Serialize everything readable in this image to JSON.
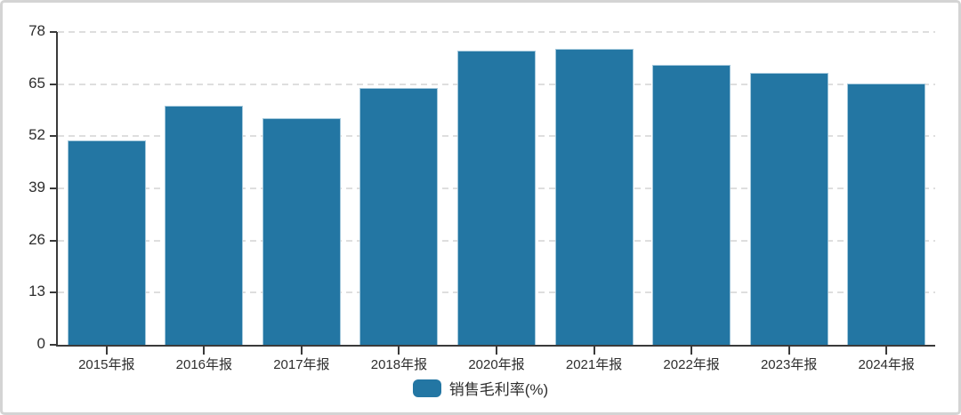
{
  "chart_data": {
    "type": "bar",
    "title": "",
    "xlabel": "",
    "ylabel": "",
    "categories": [
      "2015年报",
      "2016年报",
      "2017年报",
      "2018年报",
      "2020年报",
      "2021年报",
      "2022年报",
      "2023年报",
      "2024年报"
    ],
    "series": [
      {
        "name": "销售毛利率(%)",
        "values": [
          50.9,
          59.5,
          56.6,
          64.0,
          73.4,
          73.7,
          69.9,
          67.9,
          65.2
        ],
        "color": "#2376a3"
      }
    ],
    "ylim": [
      0,
      78
    ],
    "yticks": [
      0,
      13,
      26,
      39,
      52,
      65,
      78
    ],
    "grid": "horizontal-dashed",
    "legend_position": "bottom-center"
  },
  "colors": {
    "bar_fill": "#2376a3",
    "bar_stroke": "#a3c8dc",
    "axis": "#3a3a3a",
    "gridline": "#dedede",
    "text": "#2e2e2e",
    "frame_border": "#d4d4d4",
    "background": "#ffffff"
  }
}
